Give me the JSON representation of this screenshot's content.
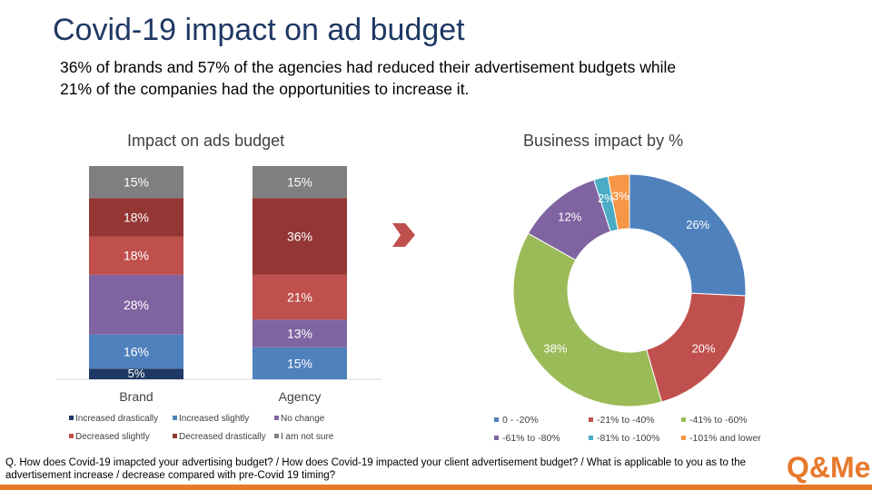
{
  "title": "Covid-19 impact on ad budget",
  "subtitle": {
    "line1": "36% of brands and 57% of the agencies had reduced their advertisement budgets while",
    "line2": "21% of the companies had the opportunities to increase it."
  },
  "footnote": "Q. How does Covid-19 imapcted your advertising budget? / How does Covid-19 impacted your client advertisement budget? / What is applicable to you as to the advertisement increase / decrease compared with pre-Covid 19 timing?",
  "logo_text": "Q&Me",
  "colors": {
    "title": "#1f3864",
    "accent": "#e7792b",
    "arrow": "#c0504d"
  },
  "arrow_icon": "chevron-right-icon",
  "chart_data": [
    {
      "type": "bar",
      "stacked": true,
      "title": "Impact on ads budget",
      "categories": [
        "Brand",
        "Agency"
      ],
      "series": [
        {
          "name": "Increased drastically",
          "color": "#1f3864",
          "values": [
            5,
            0
          ],
          "labels": [
            "5%",
            ""
          ]
        },
        {
          "name": "Increased slightly",
          "color": "#4f81bd",
          "values": [
            16,
            15
          ],
          "labels": [
            "16%",
            "15%"
          ]
        },
        {
          "name": "No change",
          "color": "#8064a2",
          "values": [
            28,
            13
          ],
          "labels": [
            "28%",
            "13%"
          ]
        },
        {
          "name": "Decreased slightly",
          "color": "#c0504d",
          "values": [
            18,
            21
          ],
          "labels": [
            "18%",
            "21%"
          ]
        },
        {
          "name": "Decreased drastically",
          "color": "#943634",
          "values": [
            18,
            36
          ],
          "labels": [
            "18%",
            "36%"
          ]
        },
        {
          "name": "I am not sure",
          "color": "#7f7f7f",
          "values": [
            15,
            15
          ],
          "labels": [
            "15%",
            "15%"
          ]
        }
      ],
      "legend_position": "bottom"
    },
    {
      "type": "pie",
      "donut": true,
      "title": "Business impact by %",
      "slices": [
        {
          "name": "0 - -20%",
          "value": 26,
          "label": "26%",
          "color": "#4f81bd"
        },
        {
          "name": "-21% to -40%",
          "value": 20,
          "label": "20%",
          "color": "#c0504d"
        },
        {
          "name": "-41% to -60%",
          "value": 38,
          "label": "38%",
          "color": "#9bbb59"
        },
        {
          "name": "-61% to -80%",
          "value": 12,
          "label": "12%",
          "color": "#8064a2"
        },
        {
          "name": "-81% to -100%",
          "value": 2,
          "label": "2%",
          "color": "#4bacc6"
        },
        {
          "name": "-101% and lower",
          "value": 3,
          "label": "3%",
          "color": "#f79646"
        }
      ],
      "legend_position": "bottom"
    }
  ]
}
